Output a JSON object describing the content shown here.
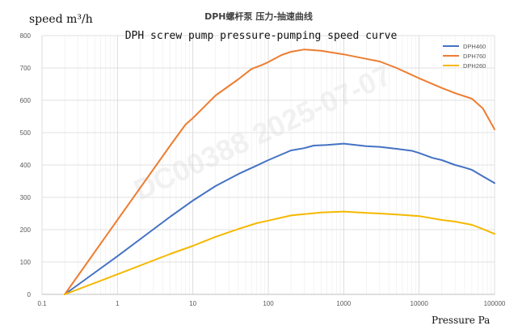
{
  "chart_data": {
    "type": "line",
    "title": "DPH螺杆泵 压力-抽速曲线",
    "subtitle": "DPH screw pump pressure-pumping speed curve",
    "ylabel": "speed m³/h",
    "xlabel": "Pressure Pa",
    "xscale": "log",
    "xlim": [
      0.1,
      100000
    ],
    "ylim": [
      0,
      800
    ],
    "x_ticks": [
      0.1,
      1,
      10,
      100,
      1000,
      10000,
      100000
    ],
    "x_tick_labels": [
      "0.1",
      "1",
      "10",
      "100",
      "1000",
      "10000",
      "100000"
    ],
    "y_ticks": [
      0,
      100,
      200,
      300,
      400,
      500,
      600,
      700,
      800
    ],
    "y_tick_labels": [
      "0",
      "100",
      "200",
      "300",
      "400",
      "500",
      "600",
      "700",
      "800"
    ],
    "grid": true,
    "legend_position": "top-right",
    "watermark": "DC00388 2025-07-07",
    "series": [
      {
        "name": "DPH460",
        "color": "#4472C4",
        "points": [
          [
            0.2,
            0
          ],
          [
            1,
            118
          ],
          [
            5,
            240
          ],
          [
            10,
            290
          ],
          [
            20,
            335
          ],
          [
            40,
            372
          ],
          [
            70,
            398
          ],
          [
            100,
            415
          ],
          [
            200,
            445
          ],
          [
            300,
            452
          ],
          [
            400,
            460
          ],
          [
            600,
            462
          ],
          [
            1000,
            466
          ],
          [
            2000,
            458
          ],
          [
            3000,
            456
          ],
          [
            5000,
            450
          ],
          [
            8000,
            444
          ],
          [
            10000,
            437
          ],
          [
            15000,
            422
          ],
          [
            20000,
            415
          ],
          [
            30000,
            400
          ],
          [
            40000,
            392
          ],
          [
            50000,
            385
          ],
          [
            70000,
            365
          ],
          [
            100000,
            344
          ]
        ]
      },
      {
        "name": "DPH760",
        "color": "#ED7D31",
        "points": [
          [
            0.2,
            0
          ],
          [
            1,
            230
          ],
          [
            5,
            460
          ],
          [
            8,
            525
          ],
          [
            10,
            545
          ],
          [
            20,
            615
          ],
          [
            40,
            665
          ],
          [
            60,
            697
          ],
          [
            80,
            708
          ],
          [
            100,
            718
          ],
          [
            150,
            740
          ],
          [
            200,
            750
          ],
          [
            300,
            757
          ],
          [
            500,
            753
          ],
          [
            1000,
            742
          ],
          [
            2000,
            728
          ],
          [
            3000,
            720
          ],
          [
            5000,
            700
          ],
          [
            10000,
            668
          ],
          [
            20000,
            638
          ],
          [
            30000,
            622
          ],
          [
            50000,
            605
          ],
          [
            70000,
            575
          ],
          [
            100000,
            510
          ]
        ]
      },
      {
        "name": "DPH260",
        "color": "#F5B800",
        "points": [
          [
            0.2,
            0
          ],
          [
            1,
            62
          ],
          [
            5,
            125
          ],
          [
            10,
            150
          ],
          [
            20,
            178
          ],
          [
            40,
            202
          ],
          [
            70,
            220
          ],
          [
            100,
            228
          ],
          [
            200,
            244
          ],
          [
            300,
            248
          ],
          [
            500,
            253
          ],
          [
            1000,
            256
          ],
          [
            2000,
            252
          ],
          [
            3000,
            250
          ],
          [
            5000,
            247
          ],
          [
            10000,
            242
          ],
          [
            20000,
            230
          ],
          [
            30000,
            225
          ],
          [
            50000,
            215
          ],
          [
            70000,
            202
          ],
          [
            100000,
            187
          ]
        ]
      }
    ]
  }
}
